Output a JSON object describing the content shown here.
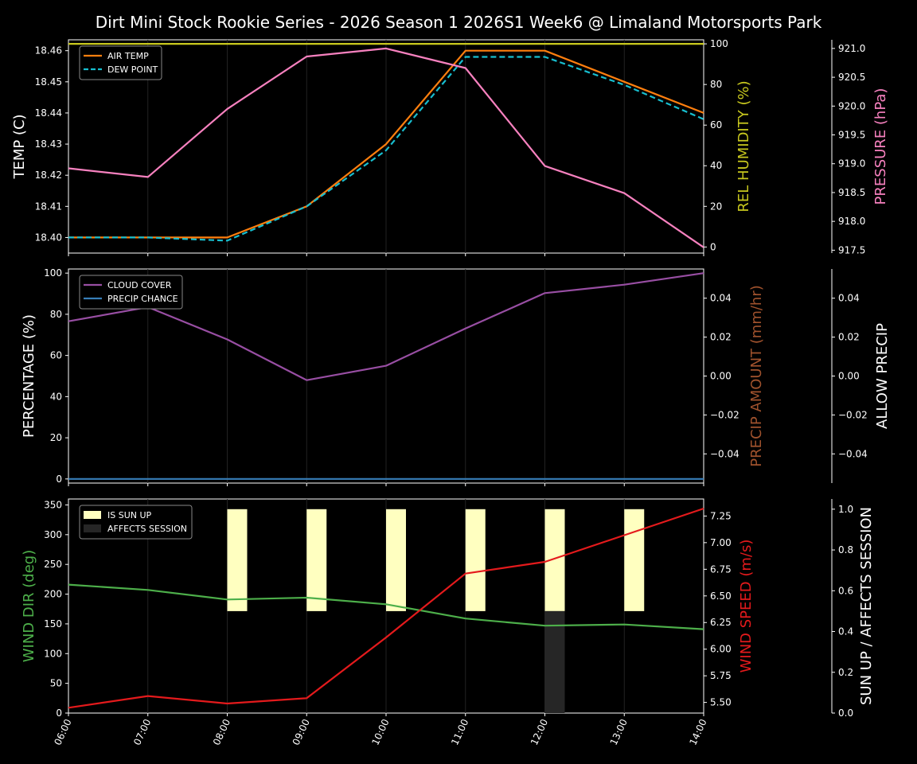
{
  "title": "Dirt Mini Stock Rookie Series - 2026 Season 1 2026S1 Week6 @ Limaland Motorsports Park",
  "colors": {
    "background": "#000000",
    "foreground": "#ffffff",
    "air_temp": "#ff7f0e",
    "dew_point": "#17becf",
    "humidity": "#c8c81e",
    "pressure": "#f781bf",
    "cloud_cover": "#984ea3",
    "precip_chance": "#377eb8",
    "precip_amount": "#a0522d",
    "wind_dir": "#4daf4a",
    "wind_speed": "#e41a1c",
    "sun_up": "#ffffc0",
    "affects_session": "#262626"
  },
  "chart_data": [
    {
      "type": "line",
      "panel": "temperature",
      "x": [
        "06:00",
        "07:00",
        "08:00",
        "09:00",
        "10:00",
        "11:00",
        "12:00",
        "13:00",
        "14:00"
      ],
      "ylabel_left": "TEMP (C)",
      "ylabel_right": "REL HUMIDITY (%)",
      "ylabel_far_right": "PRESSURE (hPa)",
      "ylim_left": [
        18.395,
        18.4635
      ],
      "yticks_left": [
        "18.40",
        "18.41",
        "18.42",
        "18.43",
        "18.44",
        "18.45",
        "18.46"
      ],
      "ylim_right": [
        -3,
        102
      ],
      "yticks_right": [
        "0",
        "20",
        "40",
        "60",
        "80",
        "100"
      ],
      "ylim_far_right": [
        917.45,
        921.15
      ],
      "yticks_far_right": [
        "917.5",
        "918.0",
        "918.5",
        "919.0",
        "919.5",
        "920.0",
        "920.5",
        "921.0"
      ],
      "legend_position": "top-left",
      "series": [
        {
          "name": "AIR TEMP",
          "axis": "left",
          "style": "solid",
          "values": [
            18.4,
            18.4,
            18.4,
            18.41,
            18.43,
            18.46,
            18.46,
            18.45,
            18.44
          ]
        },
        {
          "name": "DEW POINT",
          "axis": "left",
          "style": "dashed",
          "values": [
            18.4,
            18.4,
            18.399,
            18.41,
            18.428,
            18.458,
            18.458,
            18.449,
            18.438
          ]
        },
        {
          "axis": "right",
          "style": "solid",
          "values": [
            100,
            100,
            100,
            100,
            100,
            100,
            100,
            100,
            100
          ]
        },
        {
          "axis": "far_right",
          "style": "solid",
          "values": [
            918.92,
            918.77,
            919.95,
            920.86,
            921.0,
            920.66,
            918.96,
            918.49,
            917.55
          ]
        }
      ]
    },
    {
      "type": "line",
      "panel": "precipitation",
      "x": [
        "06:00",
        "07:00",
        "08:00",
        "09:00",
        "10:00",
        "11:00",
        "12:00",
        "13:00",
        "14:00"
      ],
      "ylabel_left": "PERCENTAGE (%)",
      "ylabel_right": "PRECIP AMOUNT (mm/hr)",
      "ylabel_far_right": "ALLOW PRECIP",
      "ylim_left": [
        -2,
        102
      ],
      "yticks_left": [
        "0",
        "20",
        "40",
        "60",
        "80",
        "100"
      ],
      "ylim_right": [
        -0.055,
        0.055
      ],
      "yticks_right": [
        "−0.04",
        "−0.02",
        "0.00",
        "0.02",
        "0.04"
      ],
      "ylim_far_right": [
        -0.055,
        0.055
      ],
      "yticks_far_right": [
        "−0.04",
        "−0.02",
        "0.00",
        "0.02",
        "0.04"
      ],
      "legend_position": "top-left",
      "series": [
        {
          "name": "CLOUD COVER",
          "axis": "left",
          "values": [
            76.6,
            83.5,
            67.8,
            48.0,
            55.0,
            73.1,
            90.3,
            94.4,
            100
          ]
        },
        {
          "name": "PRECIP CHANCE",
          "axis": "left",
          "values": [
            0,
            0,
            0,
            0,
            0,
            0,
            0,
            0,
            0
          ]
        }
      ]
    },
    {
      "type": "line",
      "panel": "wind",
      "x": [
        "06:00",
        "07:00",
        "08:00",
        "09:00",
        "10:00",
        "11:00",
        "12:00",
        "13:00",
        "14:00"
      ],
      "ylabel_left": "WIND DIR (deg)",
      "ylabel_right": "WIND SPEED (m/s)",
      "ylabel_far_right": "SUN UP / AFFECTS SESSION",
      "ylim_left": [
        0,
        360
      ],
      "yticks_left": [
        "0",
        "50",
        "100",
        "150",
        "200",
        "250",
        "300",
        "350"
      ],
      "ylim_right": [
        5.4,
        7.41
      ],
      "yticks_right": [
        "5.50",
        "5.75",
        "6.00",
        "6.25",
        "6.50",
        "6.75",
        "7.00",
        "7.25"
      ],
      "ylim_far_right": [
        0,
        1.05
      ],
      "yticks_far_right": [
        "0.0",
        "0.2",
        "0.4",
        "0.6",
        "0.8",
        "1.0"
      ],
      "legend_position": "top-left",
      "series": [
        {
          "axis": "left",
          "values": [
            216,
            207,
            191,
            194,
            183,
            159,
            147,
            149,
            141
          ]
        },
        {
          "axis": "right",
          "values": [
            5.45,
            5.56,
            5.49,
            5.54,
            6.11,
            6.71,
            6.82,
            7.07,
            7.32
          ]
        }
      ],
      "bars": [
        {
          "name": "IS SUN UP",
          "bottom": 0.5,
          "top": 1.0,
          "x_positions": [
            "08:00",
            "09:00",
            "10:00",
            "11:00",
            "12:00",
            "13:00"
          ]
        },
        {
          "name": "AFFECTS SESSION",
          "bottom": 0.0,
          "top": 0.5,
          "x_positions": [
            "12:00"
          ]
        }
      ]
    }
  ]
}
